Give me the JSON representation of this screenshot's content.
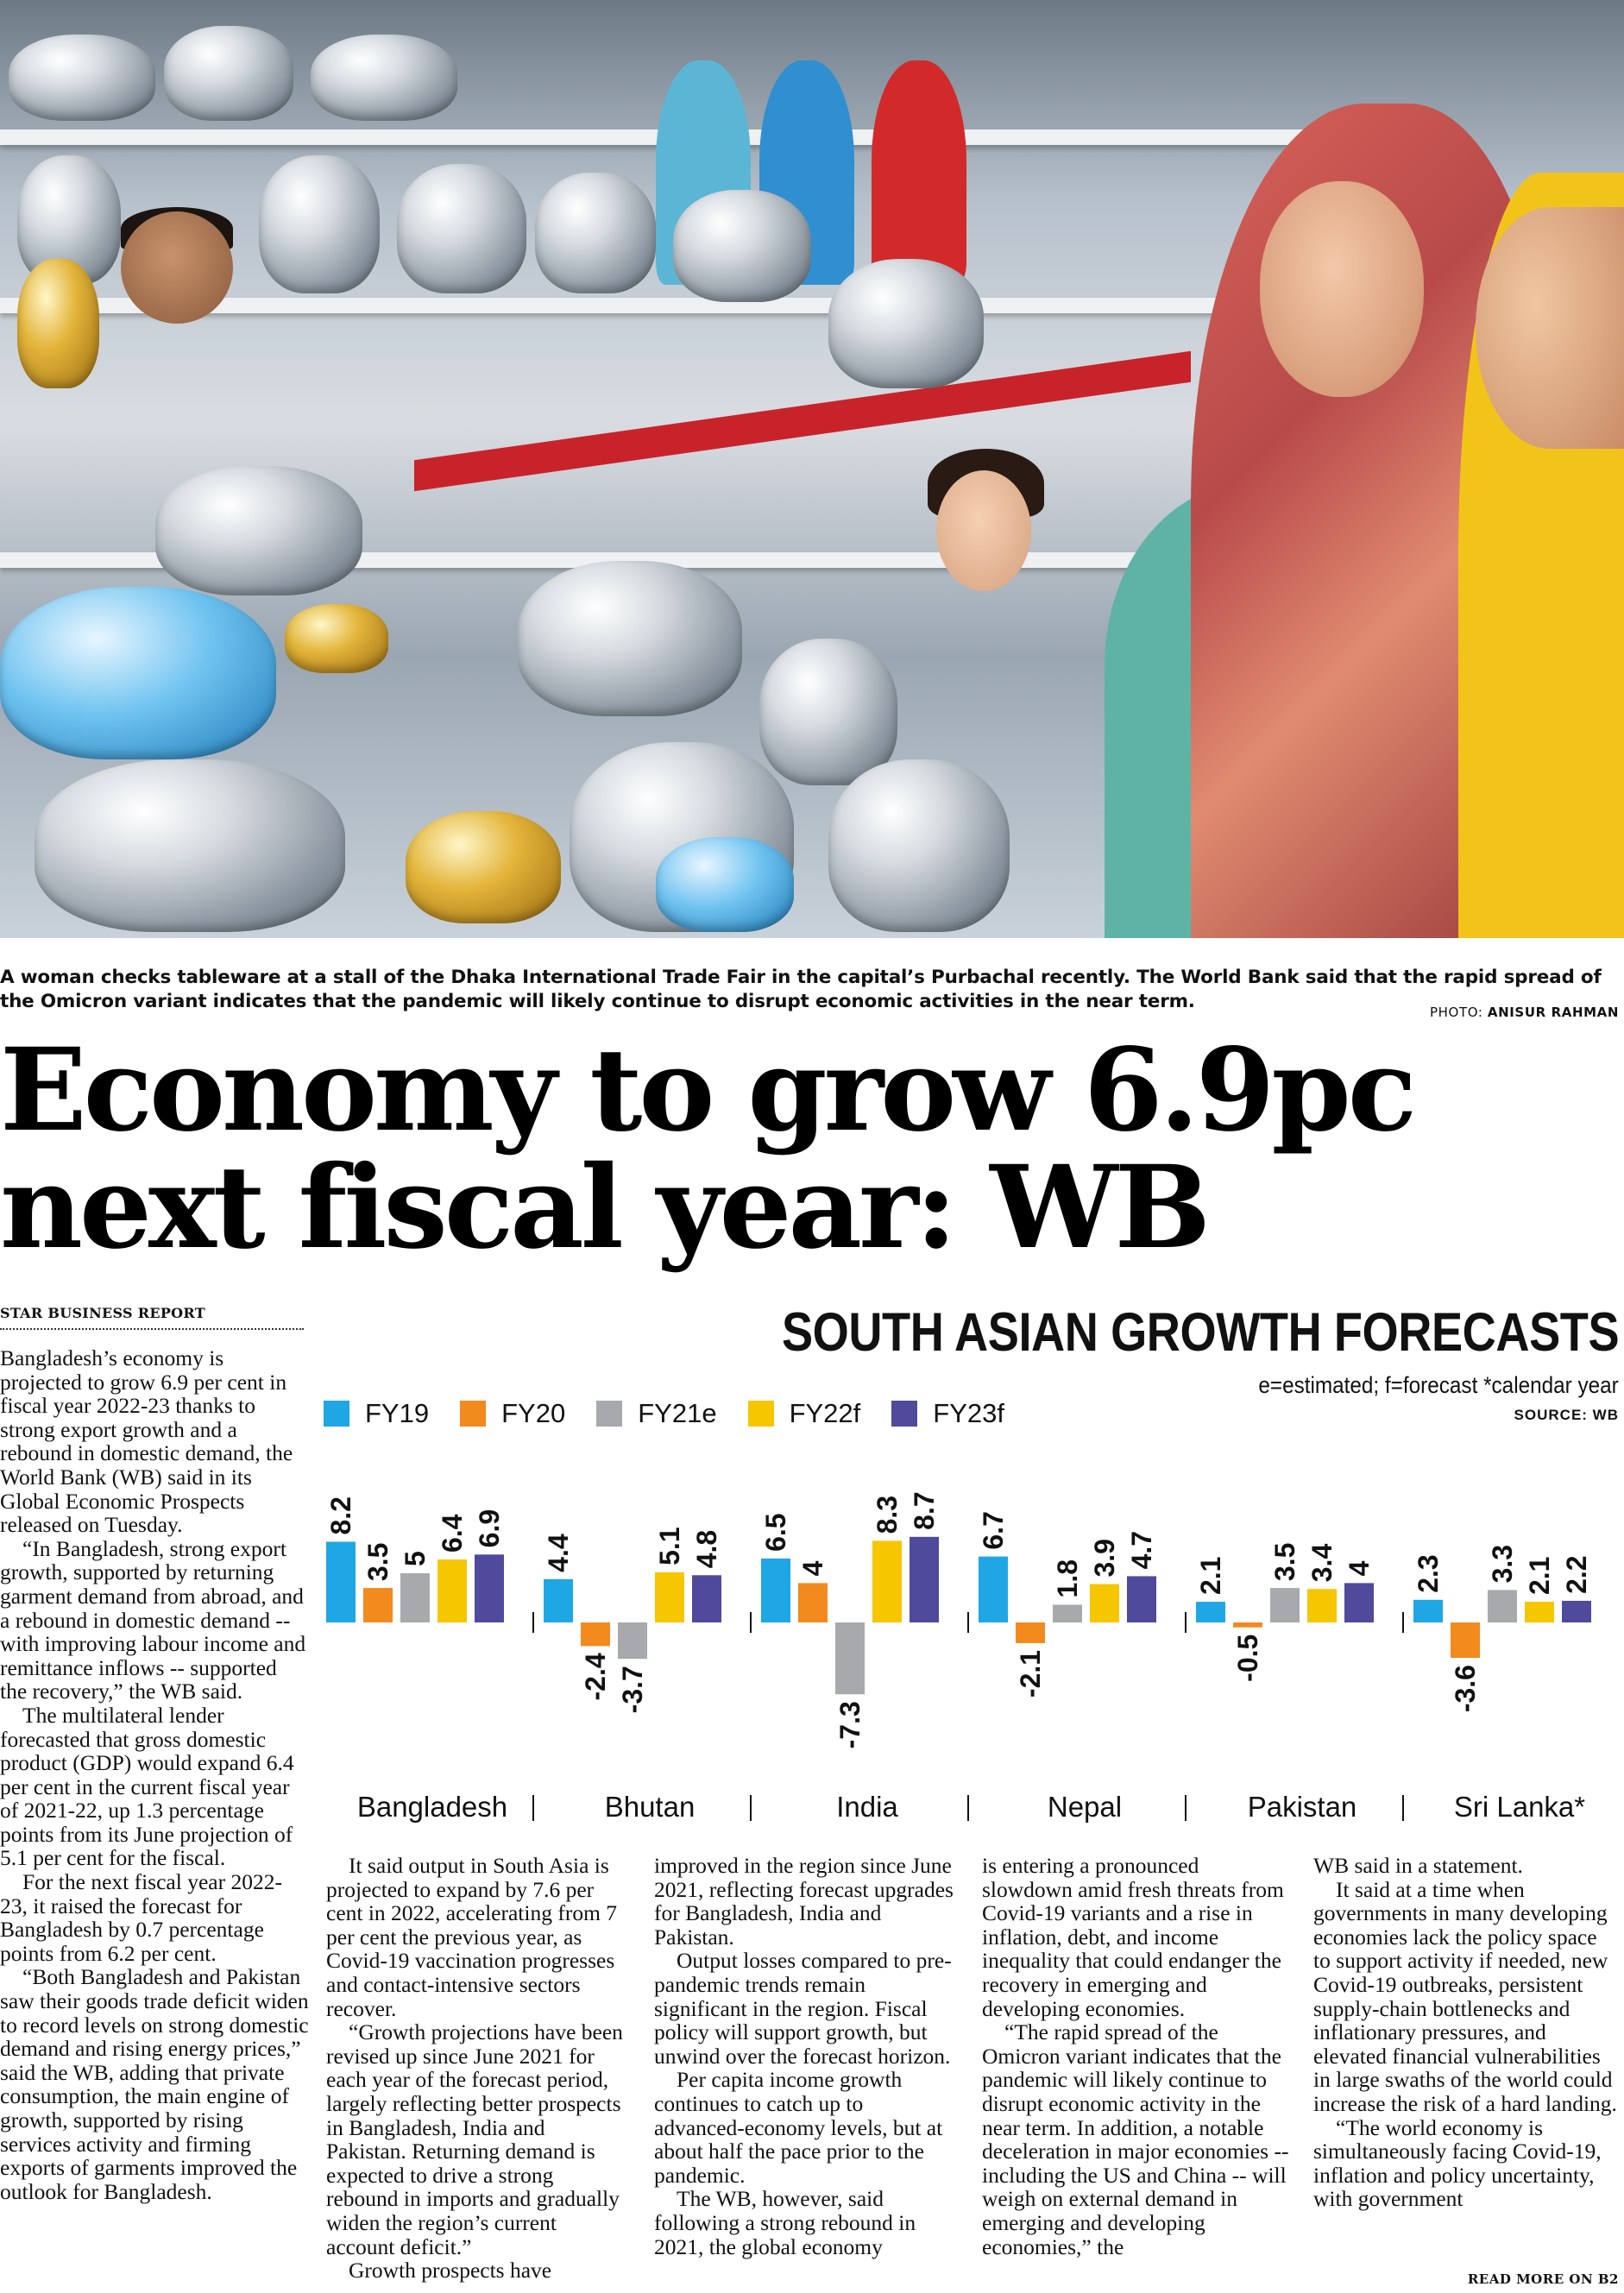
{
  "photo": {
    "caption": "A woman checks tableware at a stall of the Dhaka International Trade Fair in the capital’s Purbachal recently. The World Bank said that the rapid spread of the Omicron variant indicates that the pandemic will likely continue to disrupt economic activities in the near term.",
    "credit_label": "PHOTO: ",
    "credit_name": "ANISUR RAHMAN"
  },
  "article": {
    "headline": "Economy to grow 6.9pc next fiscal year: WB",
    "byline": "STAR BUSINESS REPORT",
    "columns": [
      [
        "Bangladesh’s economy is projected to grow 6.9 per cent in fiscal year 2022-23 thanks to strong export growth and a rebound in domestic demand, the World Bank (WB) said in its Global Economic Prospects released on Tuesday.",
        "“In Bangladesh, strong export growth, supported by returning garment demand from abroad, and a rebound in domestic demand -- with improving labour income and remittance inflows -- supported the recovery,” the WB said.",
        "The multilateral lender forecasted that gross domestic product (GDP) would expand 6.4 per cent in the current fiscal year of 2021-22, up 1.3 percentage points from its June projection of 5.1 per cent for the fiscal.",
        "For the next fiscal year 2022-23, it raised the forecast for Bangladesh by 0.7 percentage points from 6.2 per cent.",
        "“Both Bangladesh and Pakistan saw their goods trade deficit widen to record levels on strong domestic demand and rising energy prices,” said the WB, adding that private consumption, the main engine of growth, supported by rising services activity and firming exports of  garments improved the outlook for Bangladesh."
      ],
      [
        "It said output in South Asia is projected to expand by 7.6 per cent in 2022, accelerating from 7 per cent the previous year, as Covid-19 vaccination progresses and contact-intensive sectors recover.",
        "“Growth projections have been revised up since June 2021 for each year of the forecast period, largely reflecting better prospects in Bangladesh, India and Pakistan. Returning demand is expected to drive a strong rebound in imports and gradually widen the region’s current account deficit.”",
        "Growth prospects have"
      ],
      [
        "improved in the region since June 2021, reflecting forecast upgrades for Bangladesh, India and Pakistan.",
        "Output losses compared to pre-pandemic trends remain significant in the region. Fiscal policy will support growth, but unwind over the forecast horizon.",
        "Per capita income growth continues to catch up to advanced-economy levels, but at about half the pace prior to the pandemic.",
        "The WB, however, said following a strong rebound in 2021, the global economy"
      ],
      [
        "is entering a pronounced slowdown amid fresh threats from Covid-19 variants and a rise in inflation, debt, and income inequality that could endanger the recovery in emerging and developing economies.",
        "“The rapid spread of the Omicron variant indicates that the pandemic will likely continue to disrupt economic activity in the near term. In addition, a notable deceleration in major economies -- including the US and China -- will weigh on external demand in emerging and developing economies,” the"
      ],
      [
        "WB said in a statement.",
        "It said at a time when governments in many developing economies lack the policy space to support activity if needed, new Covid-19 outbreaks, persistent supply-chain bottlenecks and inflationary pressures, and elevated financial vulnerabilities in large swaths of the world could increase the risk of a hard landing.",
        "“The world economy is simultaneously facing Covid-19, inflation and policy uncertainty, with government"
      ]
    ],
    "read_more": "READ MORE ON B2"
  },
  "chart_data": {
    "type": "bar",
    "title": "SOUTH ASIAN GROWTH FORECASTS",
    "note": "e=estimated; f=forecast *calendar year",
    "source": "SOURCE: WB",
    "categories": [
      "Bangladesh",
      "Bhutan",
      "India",
      "Nepal",
      "Pakistan",
      "Sri Lanka*"
    ],
    "series": [
      {
        "name": "FY19",
        "color": "#1ea7e4",
        "values": [
          8.2,
          4.4,
          6.5,
          6.7,
          2.1,
          2.3
        ]
      },
      {
        "name": "FY20",
        "color": "#f28a1e",
        "values": [
          3.5,
          -2.4,
          4,
          -2.1,
          -0.5,
          -3.6
        ]
      },
      {
        "name": "FY21e",
        "color": "#a7a9ac",
        "values": [
          5,
          -3.7,
          -7.3,
          1.8,
          3.5,
          3.3
        ]
      },
      {
        "name": "FY22f",
        "color": "#f6c600",
        "values": [
          6.4,
          5.1,
          8.3,
          3.9,
          3.4,
          2.1
        ]
      },
      {
        "name": "FY23f",
        "color": "#4f4a9c",
        "values": [
          6.9,
          4.8,
          8.7,
          4.7,
          4,
          2.2
        ]
      }
    ],
    "grid": false,
    "legend_position": "top-left"
  }
}
